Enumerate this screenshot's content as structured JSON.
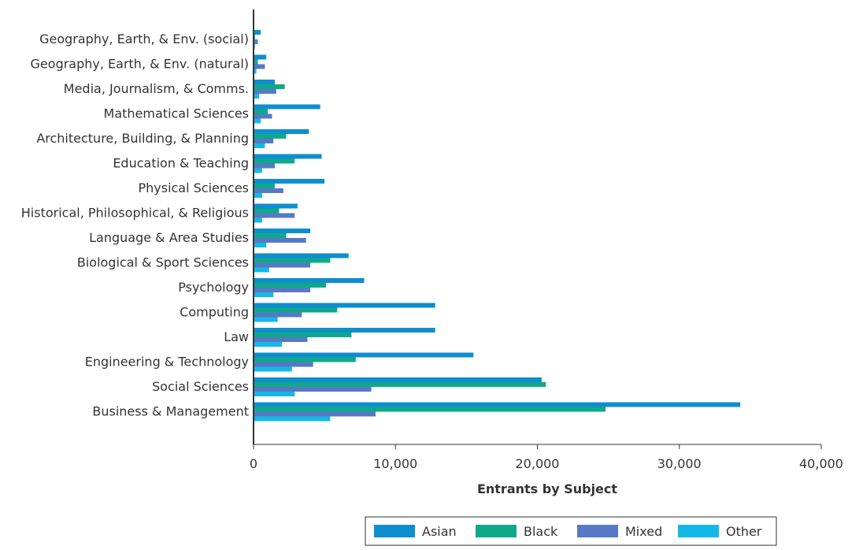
{
  "chart_data": {
    "type": "bar",
    "orientation": "horizontal",
    "xlabel": "Entrants by Subject",
    "xlim": [
      0,
      40000
    ],
    "xticks": [
      0,
      10000,
      20000,
      30000,
      40000
    ],
    "xtick_labels": [
      "0",
      "10,000",
      "20,000",
      "30,000",
      "40,000"
    ],
    "grid": false,
    "legend_position": "bottom-right",
    "categories": [
      "Geography, Earth, & Env. (social)",
      "Geography, Earth, & Env. (natural)",
      "Media, Journalism, & Comms.",
      "Mathematical Sciences",
      "Architecture, Building, & Planning",
      "Education & Teaching",
      "Physical Sciences",
      "Historical, Philosophical, & Religious",
      "Language & Area Studies",
      "Biological & Sport Sciences",
      "Psychology",
      "Computing",
      "Law",
      "Engineering & Technology",
      "Social Sciences",
      "Business & Management"
    ],
    "series": [
      {
        "name": "Asian",
        "color": "#0e8ecf",
        "values": [
          500,
          900,
          1500,
          4700,
          3900,
          4800,
          5000,
          3100,
          4000,
          6700,
          7800,
          12800,
          12800,
          15500,
          20300,
          34300
        ]
      },
      {
        "name": "Black",
        "color": "#0fa98a",
        "values": [
          100,
          300,
          2200,
          1000,
          2300,
          2900,
          1500,
          1800,
          2300,
          5400,
          5100,
          5900,
          6900,
          7200,
          20600,
          24800
        ]
      },
      {
        "name": "Mixed",
        "color": "#5579c5",
        "values": [
          300,
          800,
          1600,
          1300,
          1400,
          1500,
          2100,
          2900,
          3700,
          4000,
          4000,
          3400,
          3800,
          4200,
          8300,
          8600
        ]
      },
      {
        "name": "Other",
        "color": "#14b8e6",
        "values": [
          100,
          200,
          400,
          500,
          800,
          600,
          600,
          600,
          900,
          1100,
          1400,
          1700,
          2000,
          2700,
          2900,
          5400
        ]
      }
    ]
  }
}
